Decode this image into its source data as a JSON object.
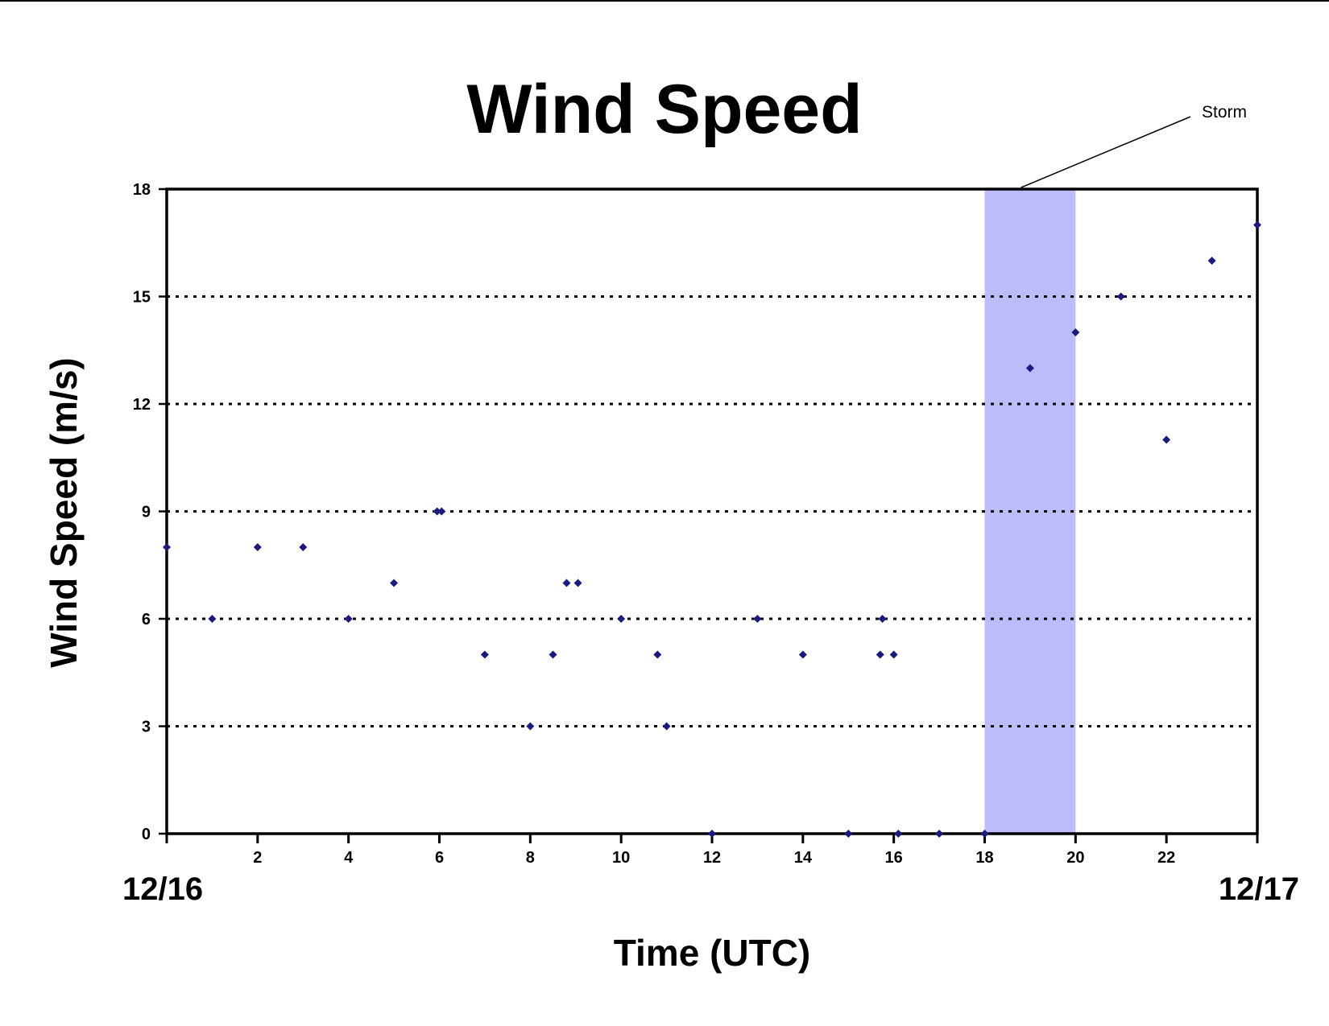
{
  "chart_data": {
    "type": "scatter",
    "title": "Wind Speed",
    "xlabel": "Time (UTC)",
    "ylabel": "Wind Speed (m/s)",
    "xlim": [
      0,
      24
    ],
    "ylim": [
      0,
      18
    ],
    "x_ticks": [
      2,
      4,
      6,
      8,
      10,
      12,
      14,
      16,
      18,
      20,
      22
    ],
    "y_ticks": [
      0,
      3,
      6,
      9,
      12,
      15,
      18
    ],
    "date_labels": {
      "start": "12/16",
      "end": "12/17"
    },
    "grid": "horizontal-dotted",
    "marker_color": "#1a1a80",
    "highlight": {
      "x_range": [
        18,
        20
      ],
      "color": "#bcbcfa",
      "label": "Storm"
    },
    "points": [
      {
        "x": 0,
        "y": 8
      },
      {
        "x": 1,
        "y": 6
      },
      {
        "x": 2,
        "y": 8
      },
      {
        "x": 3,
        "y": 8
      },
      {
        "x": 4,
        "y": 6
      },
      {
        "x": 5,
        "y": 7
      },
      {
        "x": 5.95,
        "y": 9
      },
      {
        "x": 6.05,
        "y": 9
      },
      {
        "x": 7,
        "y": 5
      },
      {
        "x": 8,
        "y": 3
      },
      {
        "x": 8.5,
        "y": 5
      },
      {
        "x": 8.8,
        "y": 7
      },
      {
        "x": 9.05,
        "y": 7
      },
      {
        "x": 10,
        "y": 6
      },
      {
        "x": 10.8,
        "y": 5
      },
      {
        "x": 11,
        "y": 3
      },
      {
        "x": 12,
        "y": 0
      },
      {
        "x": 13,
        "y": 6
      },
      {
        "x": 14,
        "y": 5
      },
      {
        "x": 15,
        "y": 0
      },
      {
        "x": 15.7,
        "y": 5
      },
      {
        "x": 15.75,
        "y": 6
      },
      {
        "x": 16,
        "y": 5
      },
      {
        "x": 16.1,
        "y": 0
      },
      {
        "x": 17,
        "y": 0
      },
      {
        "x": 18,
        "y": 0
      },
      {
        "x": 19,
        "y": 13
      },
      {
        "x": 20,
        "y": 14
      },
      {
        "x": 21,
        "y": 15
      },
      {
        "x": 22,
        "y": 11
      },
      {
        "x": 23,
        "y": 16
      },
      {
        "x": 24,
        "y": 17
      }
    ]
  }
}
